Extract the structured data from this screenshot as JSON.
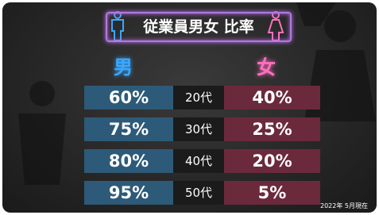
{
  "header": {
    "title": "従業員男女 比率"
  },
  "columns": {
    "male": "男",
    "female": "女"
  },
  "table": {
    "rows": [
      {
        "male": "60%",
        "age": "20代",
        "female": "40%"
      },
      {
        "male": "75%",
        "age": "30代",
        "female": "25%"
      },
      {
        "male": "80%",
        "age": "40代",
        "female": "20%"
      },
      {
        "male": "95%",
        "age": "50代",
        "female": "5%"
      }
    ]
  },
  "footnote": "2022年 5月現在"
}
